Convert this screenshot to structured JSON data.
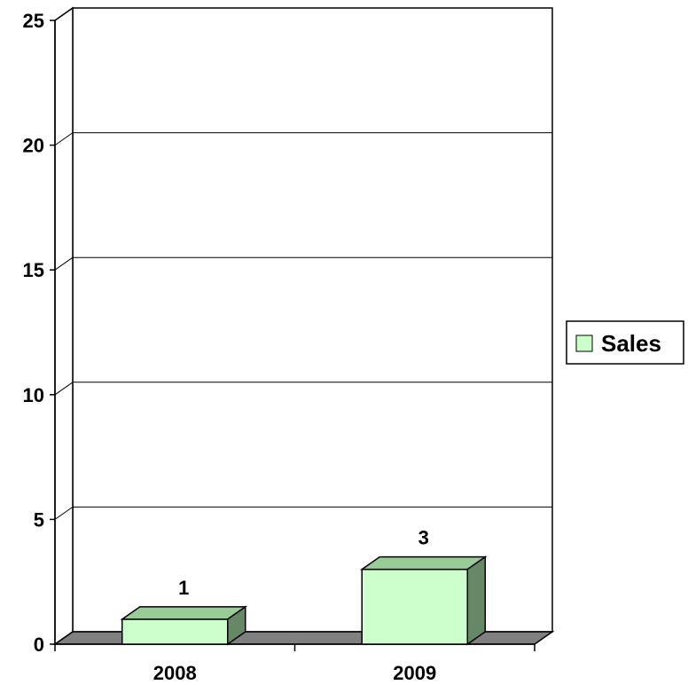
{
  "chart_data": {
    "type": "bar",
    "style": "3d",
    "categories": [
      "2008",
      "2009"
    ],
    "series": [
      {
        "name": "Sales",
        "values": [
          1,
          3
        ],
        "color": "#ccffcc",
        "top_color": "#99cc99",
        "side_color": "#668866"
      }
    ],
    "ylim": [
      0,
      25
    ],
    "yticks": [
      0,
      5,
      10,
      15,
      20,
      25
    ],
    "grid": true,
    "legend_position": "right",
    "floor_color": "#808080",
    "data_labels": true
  }
}
